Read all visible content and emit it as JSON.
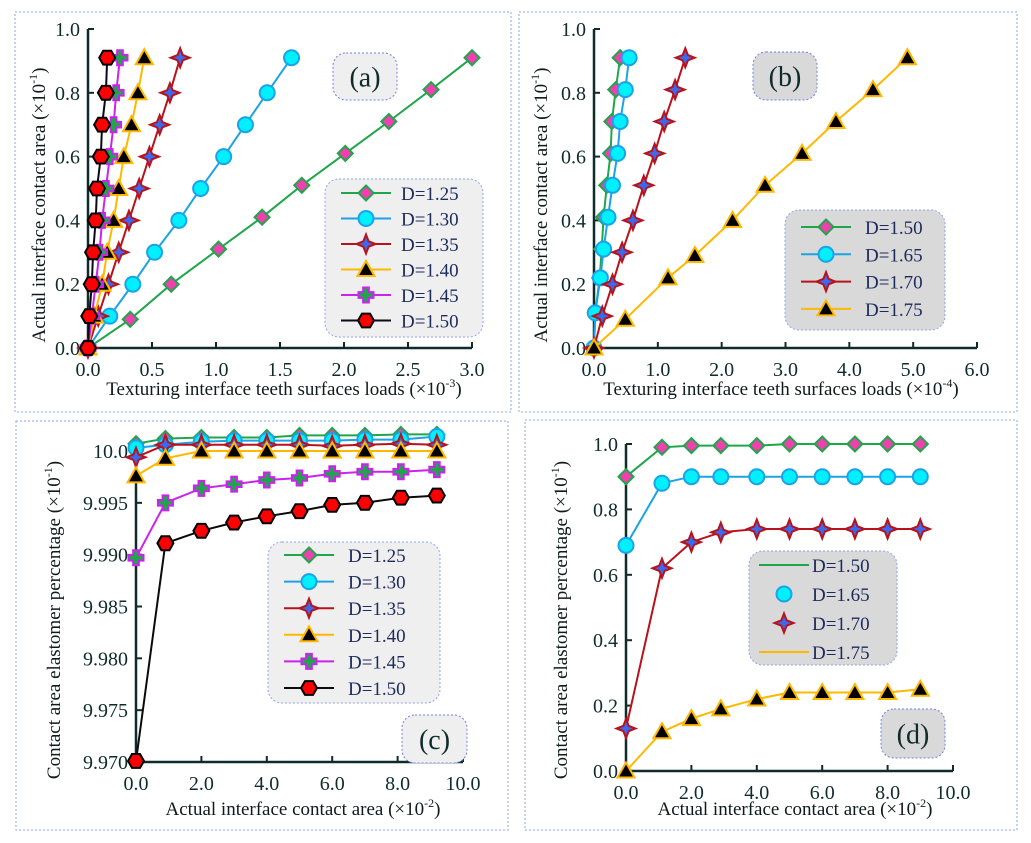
{
  "chart_data": [
    {
      "type": "line",
      "panel_label": "(a)",
      "xlabel": "Texturing interface teeth surfaces loads (×10",
      "xlabel_exp": "-3",
      "xlabel_end": ")",
      "ylabel": "Actual interface contact area (×10",
      "ylabel_exp": "-1",
      "ylabel_end": ")",
      "xlim": [
        0,
        3.0
      ],
      "ylim": [
        0,
        1.0
      ],
      "xticks": [
        0,
        0.5,
        1.0,
        1.5,
        2.0,
        2.5,
        3.0
      ],
      "xtick_labels": [
        "0.0",
        "0.5",
        "1.0",
        "1.5",
        "2.0",
        "2.5",
        "3.0"
      ],
      "yticks": [
        0,
        0.2,
        0.4,
        0.6,
        0.8,
        1.0
      ],
      "ytick_labels": [
        "0.0",
        "0.2",
        "0.4",
        "0.6",
        "0.8",
        "1.0"
      ],
      "legend_placement": "lower-right",
      "series": [
        {
          "name": "D=1.25",
          "marker": "diamond",
          "line": "#1fa64a",
          "fill": "#f040b0",
          "stroke": "#1fa64a",
          "x": [
            0,
            0.33,
            0.65,
            1.02,
            1.36,
            1.67,
            2.01,
            2.35,
            2.68,
            3.0
          ],
          "y": [
            0,
            0.09,
            0.2,
            0.31,
            0.41,
            0.51,
            0.61,
            0.71,
            0.81,
            0.91
          ]
        },
        {
          "name": "D=1.30",
          "marker": "circle",
          "line": "#1aa3e8",
          "fill": "#00f0ff",
          "stroke": "#1aa3e8",
          "x": [
            0,
            0.17,
            0.35,
            0.52,
            0.71,
            0.88,
            1.06,
            1.23,
            1.4,
            1.59
          ],
          "y": [
            0,
            0.1,
            0.2,
            0.3,
            0.4,
            0.5,
            0.6,
            0.7,
            0.8,
            0.91
          ]
        },
        {
          "name": "D=1.35",
          "marker": "star",
          "line": "#b8121a",
          "fill": "#3a6af0",
          "stroke": "#b8121a",
          "x": [
            0,
            0.08,
            0.16,
            0.24,
            0.32,
            0.4,
            0.48,
            0.56,
            0.64,
            0.72
          ],
          "y": [
            0,
            0.1,
            0.2,
            0.3,
            0.4,
            0.5,
            0.6,
            0.7,
            0.8,
            0.91
          ]
        },
        {
          "name": "D=1.40",
          "marker": "triangle",
          "line": "#ffb800",
          "fill": "#000000",
          "stroke": "#ffb800",
          "x": [
            0,
            0.05,
            0.11,
            0.15,
            0.2,
            0.24,
            0.28,
            0.34,
            0.39,
            0.44
          ],
          "y": [
            0,
            0.1,
            0.2,
            0.3,
            0.4,
            0.5,
            0.6,
            0.7,
            0.8,
            0.91
          ]
        },
        {
          "name": "D=1.45",
          "marker": "plus",
          "line": "#cc22ee",
          "fill": "#1fa64a",
          "stroke": "#cc22ee",
          "x": [
            0,
            0.03,
            0.06,
            0.09,
            0.11,
            0.14,
            0.17,
            0.2,
            0.22,
            0.25
          ],
          "y": [
            0,
            0.1,
            0.2,
            0.3,
            0.4,
            0.5,
            0.6,
            0.7,
            0.8,
            0.91
          ]
        },
        {
          "name": "D=1.50",
          "marker": "hexagon",
          "line": "#0a0a1a",
          "fill": "#ff0000",
          "stroke": "#000000",
          "x": [
            0,
            0.01,
            0.03,
            0.04,
            0.06,
            0.07,
            0.1,
            0.11,
            0.14,
            0.15
          ],
          "y": [
            0,
            0.1,
            0.2,
            0.3,
            0.4,
            0.5,
            0.6,
            0.7,
            0.8,
            0.91
          ]
        }
      ]
    },
    {
      "type": "line",
      "panel_label": "(b)",
      "xlabel": "Texturing interface teeth surfaces loads (×10",
      "xlabel_exp": "-4",
      "xlabel_end": ")",
      "ylabel": "Actual interface contact area (×10",
      "ylabel_exp": "-1",
      "ylabel_end": ")",
      "xlim": [
        0,
        6.0
      ],
      "ylim": [
        0,
        1.0
      ],
      "xticks": [
        0,
        1,
        2,
        3,
        4,
        5,
        6
      ],
      "xtick_labels": [
        "0.0",
        "1.0",
        "2.0",
        "3.0",
        "4.0",
        "5.0",
        "6.0"
      ],
      "yticks": [
        0,
        0.2,
        0.4,
        0.6,
        0.8,
        1.0
      ],
      "ytick_labels": [
        "0.0",
        "0.2",
        "0.4",
        "0.6",
        "0.8",
        "1.0"
      ],
      "legend_placement": "lower-right",
      "series": [
        {
          "name": "D=1.50",
          "marker": "diamond",
          "line": "#1fa64a",
          "fill": "#f040b0",
          "stroke": "#1fa64a",
          "x": [
            0,
            0.02,
            0.09,
            0.12,
            0.15,
            0.2,
            0.26,
            0.28,
            0.34,
            0.41
          ],
          "y": [
            0,
            0.11,
            0.22,
            0.31,
            0.41,
            0.51,
            0.61,
            0.71,
            0.81,
            0.91
          ]
        },
        {
          "name": "D=1.65",
          "marker": "circle",
          "line": "#1aa3e8",
          "fill": "#00f0ff",
          "stroke": "#1aa3e8",
          "x": [
            0,
            0.02,
            0.1,
            0.15,
            0.22,
            0.29,
            0.37,
            0.41,
            0.49,
            0.55
          ],
          "y": [
            0,
            0.11,
            0.22,
            0.31,
            0.41,
            0.51,
            0.61,
            0.71,
            0.81,
            0.91
          ]
        },
        {
          "name": "D=1.70",
          "marker": "star",
          "line": "#b8121a",
          "fill": "#3a6af0",
          "stroke": "#b8121a",
          "x": [
            0,
            0.13,
            0.29,
            0.44,
            0.61,
            0.78,
            0.95,
            1.1,
            1.27,
            1.43
          ],
          "y": [
            0,
            0.1,
            0.2,
            0.3,
            0.4,
            0.51,
            0.61,
            0.71,
            0.81,
            0.91
          ]
        },
        {
          "name": "D=1.75",
          "marker": "triangle",
          "line": "#ffb800",
          "fill": "#000000",
          "stroke": "#ffb800",
          "x": [
            0,
            0.49,
            1.16,
            1.58,
            2.17,
            2.68,
            3.26,
            3.79,
            4.37,
            4.91
          ],
          "y": [
            0,
            0.09,
            0.22,
            0.29,
            0.4,
            0.51,
            0.61,
            0.71,
            0.81,
            0.91
          ]
        }
      ]
    },
    {
      "type": "line",
      "panel_label": "(c)",
      "xlabel": "Actual interface contact area (×10",
      "xlabel_exp": "-2",
      "xlabel_end": ")",
      "ylabel": "Contact area elastomer percentage (×10",
      "ylabel_exp": "-1",
      "ylabel_end": ")",
      "xlim": [
        0,
        10.0
      ],
      "ylim": [
        9.97,
        10.0
      ],
      "xticks": [
        0,
        2,
        4,
        6,
        8,
        10
      ],
      "xtick_labels": [
        "0.0",
        "2.0",
        "4.0",
        "6.0",
        "8.0",
        "10.0"
      ],
      "yticks": [
        9.97,
        9.975,
        9.98,
        9.985,
        9.99,
        9.995,
        10.0
      ],
      "ytick_labels": [
        "9.970",
        "9.975",
        "9.980",
        "9.985",
        "9.990",
        "9.995",
        "10.0"
      ],
      "legend_placement": "center-right",
      "series": [
        {
          "name": "D=1.25",
          "marker": "diamond",
          "line": "#1fa64a",
          "fill": "#f040b0",
          "stroke": "#1fa64a",
          "x": [
            0,
            0.9,
            2,
            3,
            4,
            5,
            6,
            7,
            8.1,
            9.2
          ],
          "y": [
            10.0007,
            10.0012,
            10.0013,
            10.0013,
            10.0013,
            10.0015,
            10.0015,
            10.0015,
            10.0016,
            10.0016
          ]
        },
        {
          "name": "D=1.30",
          "marker": "circle",
          "line": "#1aa3e8",
          "fill": "#00f0ff",
          "stroke": "#1aa3e8",
          "x": [
            0,
            0.9,
            2,
            3,
            4,
            5,
            6,
            7,
            8.1,
            9.2
          ],
          "y": [
            10.0003,
            10.0006,
            10.0009,
            10.001,
            10.001,
            10.001,
            10.001,
            10.0011,
            10.0011,
            10.0014
          ]
        },
        {
          "name": "D=1.35",
          "marker": "star",
          "line": "#b8121a",
          "fill": "#3a6af0",
          "stroke": "#b8121a",
          "x": [
            0,
            0.9,
            2,
            3,
            4,
            5,
            6,
            7,
            8.1,
            9.2
          ],
          "y": [
            9.9994,
            10.0006,
            10.0006,
            10.0006,
            10.0006,
            10.0006,
            10.0005,
            10.0006,
            10.0007,
            10.0006
          ]
        },
        {
          "name": "D=1.40",
          "marker": "triangle",
          "line": "#ffb800",
          "fill": "#000000",
          "stroke": "#ffb800",
          "x": [
            0,
            0.9,
            2,
            3,
            4,
            5,
            6,
            7,
            8.1,
            9.2
          ],
          "y": [
            9.9976,
            9.9993,
            10.0,
            10.0,
            10.0,
            10.0,
            10.0,
            10.0,
            10.0,
            10.0
          ]
        },
        {
          "name": "D=1.45",
          "marker": "plus",
          "line": "#cc22ee",
          "fill": "#1fa64a",
          "stroke": "#cc22ee",
          "x": [
            0,
            0.9,
            2,
            3,
            4,
            5,
            6,
            7,
            8.1,
            9.2
          ],
          "y": [
            9.9897,
            9.995,
            9.9964,
            9.9968,
            9.9972,
            9.9974,
            9.9978,
            9.998,
            9.998,
            9.9982
          ]
        },
        {
          "name": "D=1.50",
          "marker": "hexagon",
          "line": "#0a0a0a",
          "fill": "#ff0000",
          "stroke": "#000000",
          "x": [
            0,
            0.9,
            2,
            3,
            4,
            5,
            6,
            7,
            8.1,
            9.2
          ],
          "y": [
            9.9701,
            9.9911,
            9.9923,
            9.9931,
            9.9937,
            9.9942,
            9.9948,
            9.995,
            9.9955,
            9.9957
          ]
        }
      ]
    },
    {
      "type": "line",
      "panel_label": "(d)",
      "xlabel": "Actual interface contact area (×10",
      "xlabel_exp": "-2",
      "xlabel_end": ")",
      "ylabel": "Contact area elastomer percentage (×10",
      "ylabel_exp": "-1",
      "ylabel_end": ")",
      "xlim": [
        0,
        10.0
      ],
      "ylim": [
        0,
        1.0
      ],
      "xticks": [
        0,
        2,
        4,
        6,
        8,
        10
      ],
      "xtick_labels": [
        "0.0",
        "2.0",
        "4.0",
        "6.0",
        "8.0",
        "10.0"
      ],
      "yticks": [
        0,
        0.2,
        0.4,
        0.6,
        0.8,
        1.0
      ],
      "ytick_labels": [
        "0.0",
        "0.2",
        "0.4",
        "0.6",
        "0.8",
        "1.0"
      ],
      "legend_placement": "center",
      "series": [
        {
          "name": "D=1.50",
          "marker": "diamond",
          "legend_style": "line",
          "line": "#1fa64a",
          "fill": "#f040b0",
          "stroke": "#1fa64a",
          "x": [
            0,
            1.1,
            2,
            2.9,
            4,
            5,
            6,
            7,
            8,
            9
          ],
          "y": [
            0.9,
            0.99,
            0.995,
            0.995,
            0.995,
            1.0,
            1.0,
            1.0,
            1.0,
            1.0
          ]
        },
        {
          "name": "D=1.65",
          "marker": "circle",
          "legend_style": "marker",
          "line": "#1aa3e8",
          "fill": "#00f0ff",
          "stroke": "#1aa3e8",
          "x": [
            0,
            1.1,
            2,
            2.9,
            4,
            5,
            6,
            7,
            8,
            9
          ],
          "y": [
            0.69,
            0.88,
            0.9,
            0.9,
            0.9,
            0.9,
            0.9,
            0.9,
            0.9,
            0.9
          ]
        },
        {
          "name": "D=1.70",
          "marker": "star",
          "legend_style": "marker",
          "line": "#b8121a",
          "fill": "#3a6af0",
          "stroke": "#b8121a",
          "x": [
            0,
            1.1,
            2,
            2.9,
            4,
            5,
            6,
            7,
            8,
            9
          ],
          "y": [
            0.13,
            0.62,
            0.7,
            0.73,
            0.74,
            0.74,
            0.74,
            0.74,
            0.74,
            0.74
          ]
        },
        {
          "name": "D=1.75",
          "marker": "triangle",
          "legend_style": "line",
          "line": "#ffb800",
          "fill": "#000000",
          "stroke": "#ffb800",
          "x": [
            0,
            1.1,
            2,
            2.9,
            4,
            5,
            6,
            7,
            8,
            9
          ],
          "y": [
            0,
            0.12,
            0.16,
            0.19,
            0.22,
            0.24,
            0.24,
            0.24,
            0.24,
            0.25
          ]
        }
      ]
    }
  ]
}
